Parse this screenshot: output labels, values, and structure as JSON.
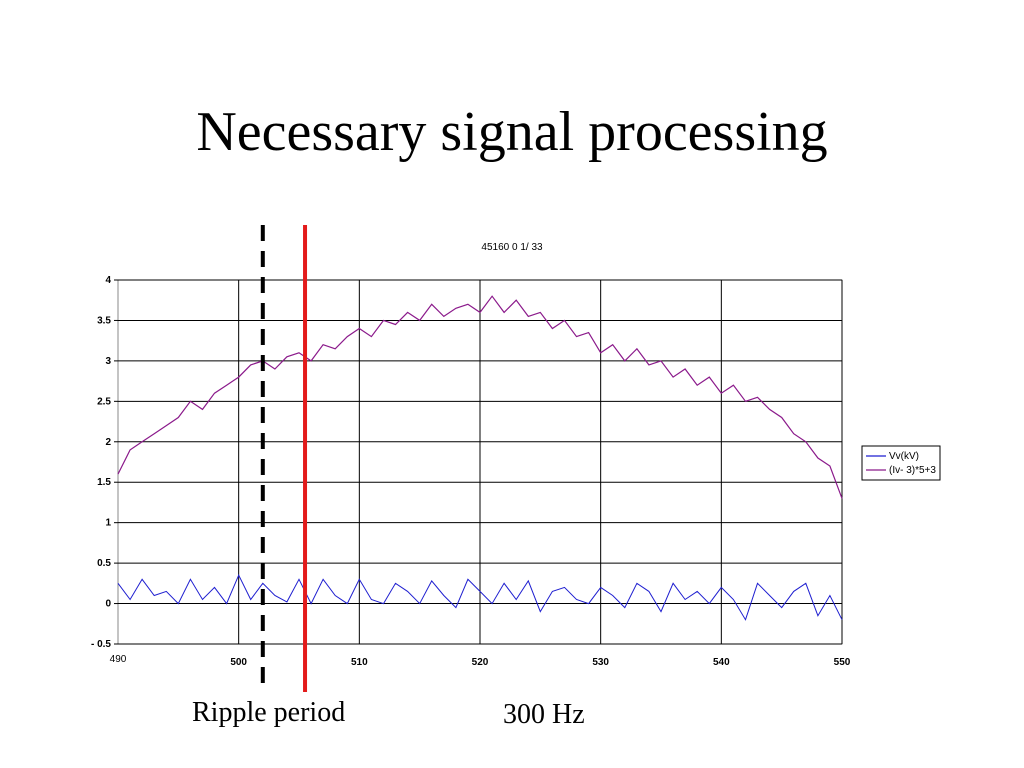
{
  "slide": {
    "title": "Necessary signal processing",
    "caption_left": "Ripple period",
    "caption_right": "300 Hz"
  },
  "colors": {
    "series_vv": "#1f1fd0",
    "series_iv": "#8b1a8b",
    "marker_dashed": "#000000",
    "marker_solid": "#e31b1b",
    "grid": "#000000"
  },
  "chart_data": {
    "type": "line",
    "title": "45160 0 1/ 33",
    "xlabel": "",
    "ylabel": "",
    "xlim": [
      490,
      550
    ],
    "ylim": [
      -0.5,
      4
    ],
    "x_ticks": [
      {
        "value": 490,
        "label": "490",
        "bold": false
      },
      {
        "value": 500,
        "label": "500",
        "bold": true
      },
      {
        "value": 510,
        "label": "510",
        "bold": true
      },
      {
        "value": 520,
        "label": "520",
        "bold": true
      },
      {
        "value": 530,
        "label": "530",
        "bold": true
      },
      {
        "value": 540,
        "label": "540",
        "bold": true
      },
      {
        "value": 550,
        "label": "550",
        "bold": true
      }
    ],
    "y_ticks": [
      {
        "value": 4,
        "label": "4"
      },
      {
        "value": 3.5,
        "label": "3.5"
      },
      {
        "value": 3,
        "label": "3"
      },
      {
        "value": 2.5,
        "label": "2.5"
      },
      {
        "value": 2,
        "label": "2"
      },
      {
        "value": 1.5,
        "label": "1.5"
      },
      {
        "value": 1,
        "label": "1"
      },
      {
        "value": 0.5,
        "label": "0.5"
      },
      {
        "value": 0,
        "label": "0"
      },
      {
        "value": -0.5,
        "label": "- 0.5"
      }
    ],
    "grid": true,
    "legend_position": "right",
    "series": [
      {
        "name": "Vv(kV)",
        "color": "#1f1fd0",
        "x": [
          490,
          491,
          492,
          493,
          494,
          495,
          496,
          497,
          498,
          499,
          500,
          501,
          502,
          503,
          504,
          505,
          506,
          507,
          508,
          509,
          510,
          511,
          512,
          513,
          514,
          515,
          516,
          517,
          518,
          519,
          520,
          521,
          522,
          523,
          524,
          525,
          526,
          527,
          528,
          529,
          530,
          531,
          532,
          533,
          534,
          535,
          536,
          537,
          538,
          539,
          540,
          541,
          542,
          543,
          544,
          545,
          546,
          547,
          548,
          549,
          550
        ],
        "y": [
          0.25,
          0.05,
          0.3,
          0.1,
          0.15,
          0.0,
          0.3,
          0.05,
          0.2,
          0.0,
          0.35,
          0.05,
          0.25,
          0.1,
          0.02,
          0.3,
          0.0,
          0.3,
          0.1,
          0.0,
          0.3,
          0.05,
          0.0,
          0.25,
          0.15,
          0.0,
          0.28,
          0.1,
          -0.05,
          0.3,
          0.15,
          0.0,
          0.25,
          0.05,
          0.28,
          -0.1,
          0.15,
          0.2,
          0.05,
          0.0,
          0.2,
          0.1,
          -0.05,
          0.25,
          0.15,
          -0.1,
          0.25,
          0.05,
          0.15,
          0.0,
          0.2,
          0.05,
          -0.2,
          0.25,
          0.1,
          -0.05,
          0.15,
          0.25,
          -0.15,
          0.1,
          -0.2
        ]
      },
      {
        "name": "(Iv- 3)*5+3",
        "color": "#8b1a8b",
        "x": [
          490,
          491,
          492,
          493,
          494,
          495,
          496,
          497,
          498,
          499,
          500,
          501,
          502,
          503,
          504,
          505,
          506,
          507,
          508,
          509,
          510,
          511,
          512,
          513,
          514,
          515,
          516,
          517,
          518,
          519,
          520,
          521,
          522,
          523,
          524,
          525,
          526,
          527,
          528,
          529,
          530,
          531,
          532,
          533,
          534,
          535,
          536,
          537,
          538,
          539,
          540,
          541,
          542,
          543,
          544,
          545,
          546,
          547,
          548,
          549,
          550
        ],
        "y": [
          1.6,
          1.9,
          2.0,
          2.1,
          2.2,
          2.3,
          2.5,
          2.4,
          2.6,
          2.7,
          2.8,
          2.95,
          3.0,
          2.9,
          3.05,
          3.1,
          3.0,
          3.2,
          3.15,
          3.3,
          3.4,
          3.3,
          3.5,
          3.45,
          3.6,
          3.5,
          3.7,
          3.55,
          3.65,
          3.7,
          3.6,
          3.8,
          3.6,
          3.75,
          3.55,
          3.6,
          3.4,
          3.5,
          3.3,
          3.35,
          3.1,
          3.2,
          3.0,
          3.15,
          2.95,
          3.0,
          2.8,
          2.9,
          2.7,
          2.8,
          2.6,
          2.7,
          2.5,
          2.55,
          2.4,
          2.3,
          2.1,
          2.0,
          1.8,
          1.7,
          1.3
        ]
      }
    ],
    "vertical_markers": [
      {
        "x": 502,
        "style": "dashed",
        "color": "#000000"
      },
      {
        "x": 505.5,
        "style": "solid",
        "color": "#e31b1b"
      }
    ]
  }
}
